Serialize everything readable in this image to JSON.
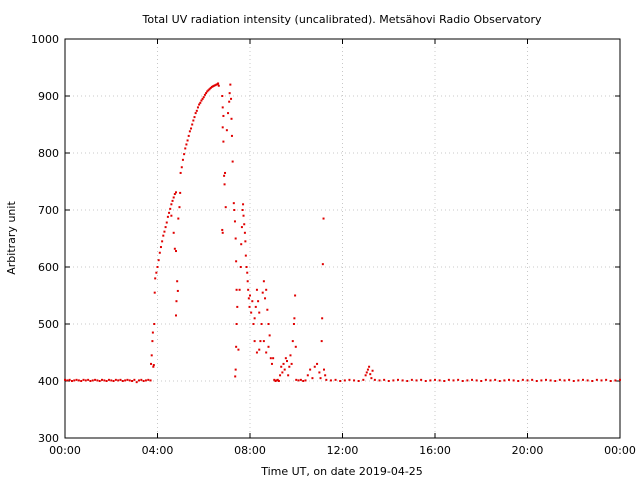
{
  "chart_data": {
    "type": "scatter",
    "title": "Total UV radiation intensity (uncalibrated). Metsähovi Radio Observatory",
    "xlabel": "Time UT, on date 2019-04-25",
    "ylabel": "Arbitrary unit",
    "xlim": [
      0,
      24
    ],
    "ylim": [
      300,
      1000
    ],
    "x_ticks": [
      0,
      4,
      8,
      12,
      16,
      20,
      24
    ],
    "x_tick_labels": [
      "00:00",
      "04:00",
      "08:00",
      "12:00",
      "16:00",
      "20:00",
      "00:00"
    ],
    "y_ticks": [
      300,
      400,
      500,
      600,
      700,
      800,
      900,
      1000
    ],
    "y_tick_labels": [
      "300",
      "400",
      "500",
      "600",
      "700",
      "800",
      "900",
      "1000"
    ],
    "grid": true,
    "legend": "none",
    "point_color": "#e00000",
    "series": [
      {
        "values": [
          [
            0.0,
            402
          ],
          [
            0.1,
            401
          ],
          [
            0.2,
            402
          ],
          [
            0.3,
            400
          ],
          [
            0.4,
            401
          ],
          [
            0.5,
            402
          ],
          [
            0.6,
            401
          ],
          [
            0.7,
            400
          ],
          [
            0.8,
            402
          ],
          [
            0.9,
            401
          ],
          [
            1.0,
            402
          ],
          [
            1.1,
            400
          ],
          [
            1.2,
            401
          ],
          [
            1.3,
            402
          ],
          [
            1.4,
            401
          ],
          [
            1.5,
            400
          ],
          [
            1.6,
            402
          ],
          [
            1.7,
            401
          ],
          [
            1.8,
            400
          ],
          [
            1.9,
            402
          ],
          [
            2.0,
            401
          ],
          [
            2.1,
            400
          ],
          [
            2.2,
            402
          ],
          [
            2.3,
            401
          ],
          [
            2.4,
            402
          ],
          [
            2.5,
            400
          ],
          [
            2.6,
            401
          ],
          [
            2.7,
            402
          ],
          [
            2.8,
            401
          ],
          [
            2.9,
            400
          ],
          [
            3.0,
            402
          ],
          [
            3.1,
            398
          ],
          [
            3.2,
            401
          ],
          [
            3.3,
            402
          ],
          [
            3.4,
            400
          ],
          [
            3.5,
            401
          ],
          [
            3.6,
            402
          ],
          [
            3.7,
            401
          ],
          [
            3.72,
            430
          ],
          [
            3.75,
            445
          ],
          [
            3.78,
            470
          ],
          [
            3.8,
            485
          ],
          [
            3.82,
            425
          ],
          [
            3.84,
            428
          ],
          [
            3.86,
            500
          ],
          [
            3.88,
            555
          ],
          [
            3.9,
            580
          ],
          [
            3.95,
            590
          ],
          [
            4.0,
            600
          ],
          [
            4.05,
            612
          ],
          [
            4.1,
            625
          ],
          [
            4.15,
            635
          ],
          [
            4.2,
            645
          ],
          [
            4.25,
            655
          ],
          [
            4.3,
            662
          ],
          [
            4.35,
            670
          ],
          [
            4.4,
            678
          ],
          [
            4.45,
            688
          ],
          [
            4.5,
            695
          ],
          [
            4.55,
            702
          ],
          [
            4.6,
            710
          ],
          [
            4.65,
            716
          ],
          [
            4.7,
            722
          ],
          [
            4.75,
            728
          ],
          [
            4.8,
            731
          ],
          [
            4.6,
            690
          ],
          [
            4.7,
            660
          ],
          [
            4.75,
            632
          ],
          [
            4.8,
            628
          ],
          [
            4.85,
            575
          ],
          [
            4.88,
            558
          ],
          [
            4.82,
            540
          ],
          [
            4.8,
            515
          ],
          [
            4.9,
            685
          ],
          [
            4.95,
            705
          ],
          [
            4.98,
            730
          ],
          [
            5.0,
            765
          ],
          [
            5.05,
            775
          ],
          [
            5.1,
            788
          ],
          [
            5.15,
            798
          ],
          [
            5.2,
            808
          ],
          [
            5.25,
            815
          ],
          [
            5.3,
            822
          ],
          [
            5.35,
            830
          ],
          [
            5.4,
            838
          ],
          [
            5.45,
            843
          ],
          [
            5.5,
            850
          ],
          [
            5.55,
            857
          ],
          [
            5.6,
            863
          ],
          [
            5.65,
            870
          ],
          [
            5.7,
            874
          ],
          [
            5.75,
            880
          ],
          [
            5.8,
            885
          ],
          [
            5.85,
            888
          ],
          [
            5.9,
            892
          ],
          [
            5.95,
            895
          ],
          [
            6.0,
            898
          ],
          [
            6.05,
            902
          ],
          [
            6.1,
            905
          ],
          [
            6.15,
            908
          ],
          [
            6.2,
            910
          ],
          [
            6.25,
            912
          ],
          [
            6.3,
            914
          ],
          [
            6.35,
            916
          ],
          [
            6.4,
            917
          ],
          [
            6.45,
            918
          ],
          [
            6.5,
            919
          ],
          [
            6.55,
            920
          ],
          [
            6.6,
            921
          ],
          [
            6.62,
            922
          ],
          [
            6.65,
            918
          ],
          [
            6.8,
            900
          ],
          [
            6.82,
            880
          ],
          [
            6.85,
            865
          ],
          [
            6.82,
            845
          ],
          [
            6.85,
            820
          ],
          [
            6.88,
            760
          ],
          [
            6.9,
            745
          ],
          [
            6.92,
            765
          ],
          [
            6.95,
            705
          ],
          [
            6.8,
            665
          ],
          [
            6.82,
            660
          ],
          [
            7.0,
            840
          ],
          [
            7.05,
            870
          ],
          [
            7.1,
            890
          ],
          [
            7.12,
            905
          ],
          [
            7.15,
            920
          ],
          [
            7.18,
            895
          ],
          [
            7.2,
            860
          ],
          [
            7.22,
            830
          ],
          [
            7.25,
            785
          ],
          [
            7.3,
            712
          ],
          [
            7.32,
            700
          ],
          [
            7.35,
            680
          ],
          [
            7.38,
            650
          ],
          [
            7.4,
            610
          ],
          [
            7.42,
            560
          ],
          [
            7.45,
            530
          ],
          [
            7.42,
            500
          ],
          [
            7.4,
            460
          ],
          [
            7.38,
            420
          ],
          [
            7.36,
            408
          ],
          [
            7.5,
            455
          ],
          [
            7.55,
            560
          ],
          [
            7.6,
            600
          ],
          [
            7.62,
            640
          ],
          [
            7.65,
            670
          ],
          [
            7.68,
            700
          ],
          [
            7.7,
            710
          ],
          [
            7.72,
            690
          ],
          [
            7.75,
            675
          ],
          [
            7.78,
            660
          ],
          [
            7.8,
            645
          ],
          [
            7.82,
            620
          ],
          [
            7.85,
            600
          ],
          [
            7.88,
            590
          ],
          [
            7.9,
            575
          ],
          [
            7.92,
            560
          ],
          [
            7.95,
            545
          ],
          [
            7.98,
            530
          ],
          [
            8.0,
            550
          ],
          [
            8.05,
            520
          ],
          [
            8.1,
            540
          ],
          [
            8.15,
            500
          ],
          [
            8.2,
            510
          ],
          [
            8.25,
            530
          ],
          [
            8.3,
            560
          ],
          [
            8.35,
            540
          ],
          [
            8.4,
            520
          ],
          [
            8.45,
            470
          ],
          [
            8.5,
            500
          ],
          [
            8.55,
            555
          ],
          [
            8.6,
            575
          ],
          [
            8.65,
            545
          ],
          [
            8.7,
            560
          ],
          [
            8.75,
            525
          ],
          [
            8.8,
            500
          ],
          [
            8.85,
            480
          ],
          [
            8.9,
            440
          ],
          [
            8.95,
            430
          ],
          [
            8.6,
            470
          ],
          [
            8.4,
            455
          ],
          [
            8.3,
            450
          ],
          [
            8.2,
            470
          ],
          [
            8.7,
            450
          ],
          [
            8.8,
            460
          ],
          [
            9.0,
            440
          ],
          [
            9.05,
            402
          ],
          [
            9.1,
            400
          ],
          [
            9.15,
            401
          ],
          [
            9.2,
            402
          ],
          [
            9.25,
            400
          ],
          [
            9.3,
            410
          ],
          [
            9.35,
            425
          ],
          [
            9.4,
            415
          ],
          [
            9.45,
            430
          ],
          [
            9.5,
            420
          ],
          [
            9.55,
            440
          ],
          [
            9.6,
            435
          ],
          [
            9.65,
            410
          ],
          [
            9.7,
            425
          ],
          [
            9.75,
            445
          ],
          [
            9.8,
            430
          ],
          [
            9.85,
            470
          ],
          [
            9.9,
            500
          ],
          [
            9.92,
            510
          ],
          [
            9.95,
            550
          ],
          [
            9.98,
            460
          ],
          [
            10.0,
            402
          ],
          [
            10.1,
            401
          ],
          [
            10.2,
            402
          ],
          [
            10.3,
            400
          ],
          [
            10.4,
            401
          ],
          [
            10.5,
            410
          ],
          [
            10.6,
            420
          ],
          [
            10.7,
            405
          ],
          [
            10.8,
            425
          ],
          [
            10.9,
            430
          ],
          [
            11.0,
            415
          ],
          [
            11.05,
            405
          ],
          [
            11.1,
            470
          ],
          [
            11.12,
            510
          ],
          [
            11.15,
            605
          ],
          [
            11.18,
            685
          ],
          [
            11.2,
            420
          ],
          [
            11.25,
            410
          ],
          [
            11.3,
            402
          ],
          [
            11.5,
            401
          ],
          [
            11.7,
            402
          ],
          [
            11.9,
            400
          ],
          [
            12.1,
            401
          ],
          [
            12.3,
            402
          ],
          [
            12.5,
            401
          ],
          [
            12.7,
            400
          ],
          [
            12.9,
            402
          ],
          [
            13.0,
            410
          ],
          [
            13.05,
            415
          ],
          [
            13.1,
            420
          ],
          [
            13.15,
            425
          ],
          [
            13.2,
            412
          ],
          [
            13.25,
            405
          ],
          [
            13.3,
            418
          ],
          [
            13.4,
            402
          ],
          [
            13.6,
            401
          ],
          [
            13.8,
            402
          ],
          [
            14.0,
            400
          ],
          [
            14.2,
            401
          ],
          [
            14.4,
            402
          ],
          [
            14.6,
            401
          ],
          [
            14.8,
            400
          ],
          [
            15.0,
            402
          ],
          [
            15.2,
            401
          ],
          [
            15.4,
            402
          ],
          [
            15.6,
            400
          ],
          [
            15.8,
            401
          ],
          [
            16.0,
            402
          ],
          [
            16.2,
            401
          ],
          [
            16.4,
            400
          ],
          [
            16.6,
            402
          ],
          [
            16.8,
            401
          ],
          [
            17.0,
            402
          ],
          [
            17.2,
            400
          ],
          [
            17.4,
            401
          ],
          [
            17.6,
            402
          ],
          [
            17.8,
            401
          ],
          [
            18.0,
            400
          ],
          [
            18.2,
            402
          ],
          [
            18.4,
            401
          ],
          [
            18.6,
            402
          ],
          [
            18.8,
            400
          ],
          [
            19.0,
            401
          ],
          [
            19.2,
            402
          ],
          [
            19.4,
            401
          ],
          [
            19.6,
            400
          ],
          [
            19.8,
            402
          ],
          [
            20.0,
            401
          ],
          [
            20.2,
            402
          ],
          [
            20.4,
            400
          ],
          [
            20.6,
            401
          ],
          [
            20.8,
            402
          ],
          [
            21.0,
            401
          ],
          [
            21.2,
            400
          ],
          [
            21.4,
            402
          ],
          [
            21.6,
            401
          ],
          [
            21.8,
            402
          ],
          [
            22.0,
            400
          ],
          [
            22.2,
            401
          ],
          [
            22.4,
            402
          ],
          [
            22.6,
            401
          ],
          [
            22.8,
            400
          ],
          [
            23.0,
            402
          ],
          [
            23.2,
            401
          ],
          [
            23.4,
            402
          ],
          [
            23.6,
            400
          ],
          [
            23.8,
            401
          ],
          [
            24.0,
            402
          ]
        ]
      }
    ]
  }
}
